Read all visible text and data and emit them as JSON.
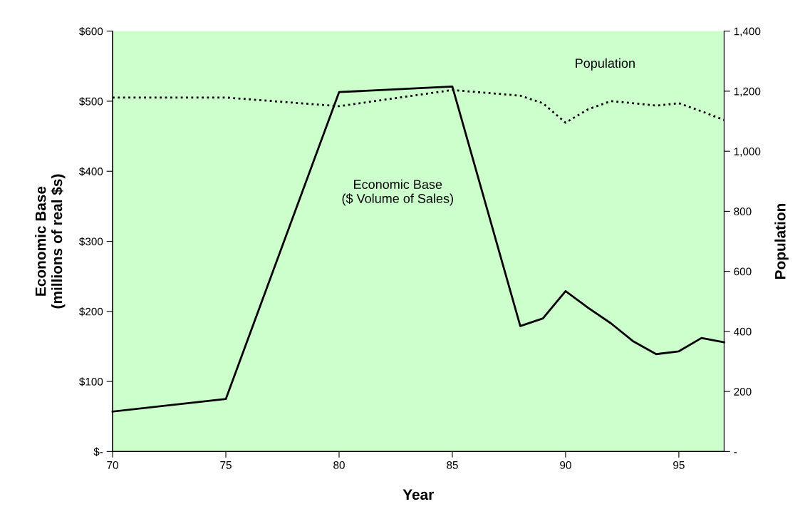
{
  "chart_data": {
    "type": "line",
    "xlabel": "Year",
    "ylabel": "Economic Base\n(millions of real $s)",
    "y2label": "Population",
    "xlim": [
      70,
      97
    ],
    "xticks": [
      70,
      75,
      80,
      85,
      90,
      95
    ],
    "ylim": [
      0,
      600
    ],
    "yticks": [
      {
        "value": 0,
        "label": "$-"
      },
      {
        "value": 100,
        "label": "$100"
      },
      {
        "value": 200,
        "label": "$200"
      },
      {
        "value": 300,
        "label": "$300"
      },
      {
        "value": 400,
        "label": "$400"
      },
      {
        "value": 500,
        "label": "$500"
      },
      {
        "value": 600,
        "label": "$600"
      }
    ],
    "y2lim": [
      0,
      1400
    ],
    "y2ticks": [
      {
        "value": 0,
        "label": "-"
      },
      {
        "value": 200,
        "label": "200"
      },
      {
        "value": 400,
        "label": "400"
      },
      {
        "value": 600,
        "label": "600"
      },
      {
        "value": 800,
        "label": "800"
      },
      {
        "value": 1000,
        "label": "1,000"
      },
      {
        "value": 1200,
        "label": "1,200"
      },
      {
        "value": 1400,
        "label": "1,400"
      }
    ],
    "grid": false,
    "legend": false,
    "series": [
      {
        "color": "#000000",
        "line_style": "solid",
        "x": [
          70,
          75,
          80,
          85,
          88,
          89,
          90,
          91,
          92,
          93,
          94,
          95,
          96,
          97
        ],
        "values": [
          57,
          75,
          513,
          521,
          179,
          190,
          229,
          205,
          183,
          157,
          139,
          143,
          162,
          156
        ]
      },
      {
        "color": "#000000",
        "line_style": "dotted",
        "axis": "y2",
        "x": [
          70,
          75,
          80,
          85,
          88,
          89,
          90,
          91,
          92,
          93,
          94,
          95,
          96,
          97
        ],
        "values": [
          1179,
          1179,
          1150,
          1204,
          1185,
          1160,
          1095,
          1140,
          1167,
          1160,
          1152,
          1160,
          1133,
          1104
        ]
      }
    ],
    "annotations": [
      "Economic Base\n($ Volume of Sales)",
      "Population"
    ]
  }
}
